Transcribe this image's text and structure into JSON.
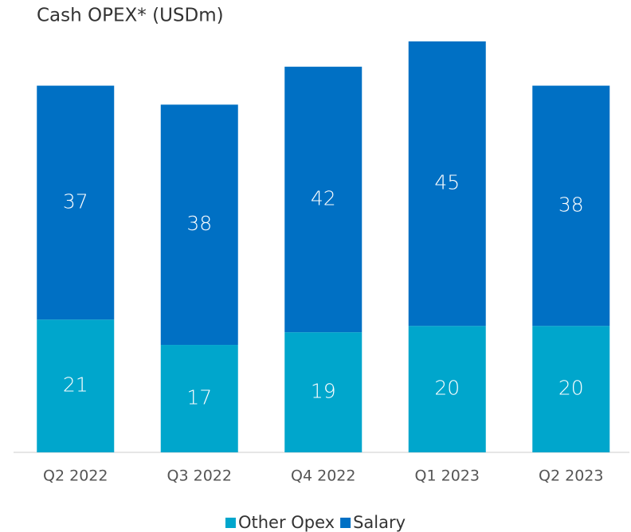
{
  "chart_data": {
    "type": "stacked-bar",
    "title": "Cash OPEX* (USDm)",
    "categories": [
      "Q2 2022",
      "Q3 2022",
      "Q4 2022",
      "Q1 2023",
      "Q2 2023"
    ],
    "series": [
      {
        "name": "Other Opex",
        "color": "#00a6cc",
        "values": [
          21,
          17,
          19,
          20,
          20
        ]
      },
      {
        "name": "Salary",
        "color": "#0070c4",
        "values": [
          37,
          38,
          42,
          45,
          38
        ]
      }
    ]
  }
}
